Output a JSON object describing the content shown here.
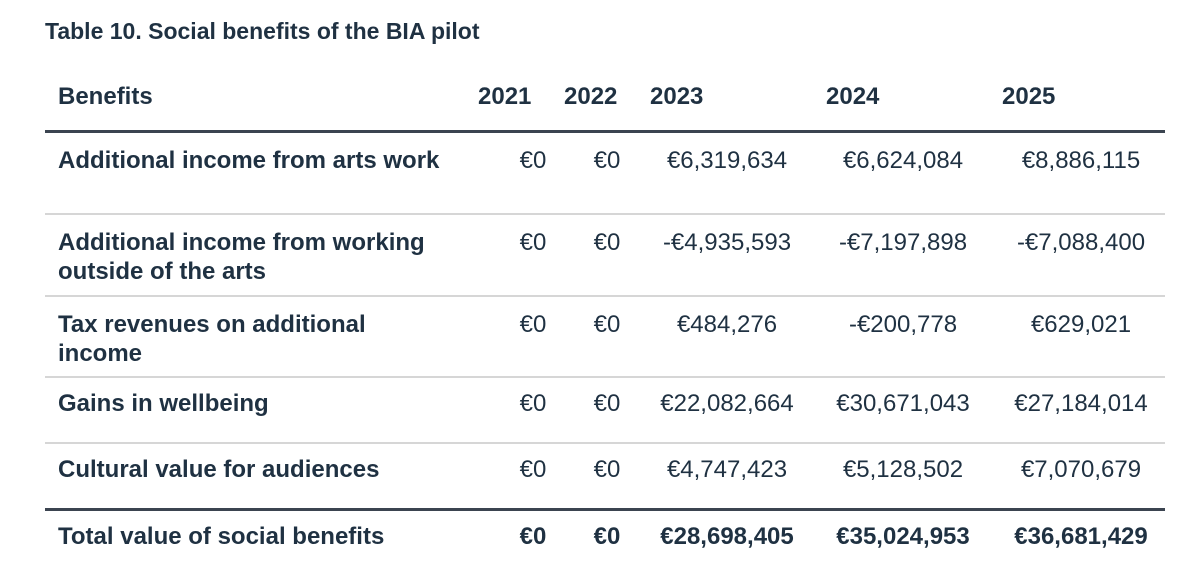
{
  "caption": "Table 10. Social benefits of the BIA pilot",
  "table": {
    "headers": [
      "Benefits",
      "2021",
      "2022",
      "2023",
      "2024",
      "2025"
    ],
    "rows": [
      {
        "label": "Additional income from arts work",
        "values": [
          "€0",
          "€0",
          "€6,319,634",
          "€6,624,084",
          "€8,886,115"
        ]
      },
      {
        "label": "Additional income from working outside of the arts",
        "values": [
          "€0",
          "€0",
          "-€4,935,593",
          "-€7,197,898",
          "-€7,088,400"
        ]
      },
      {
        "label": "Tax revenues on additional income",
        "values": [
          "€0",
          "€0",
          "€484,276",
          "-€200,778",
          "€629,021"
        ]
      },
      {
        "label": "Gains in wellbeing",
        "values": [
          "€0",
          "€0",
          "€22,082,664",
          "€30,671,043",
          "€27,184,014"
        ]
      },
      {
        "label": "Cultural value for audiences",
        "values": [
          "€0",
          "€0",
          "€4,747,423",
          "€5,128,502",
          "€7,070,679"
        ]
      }
    ],
    "total": {
      "label": "Total value of social benefits",
      "values": [
        "€0",
        "€0",
        "€28,698,405",
        "€35,024,953",
        "€36,681,429"
      ]
    }
  }
}
